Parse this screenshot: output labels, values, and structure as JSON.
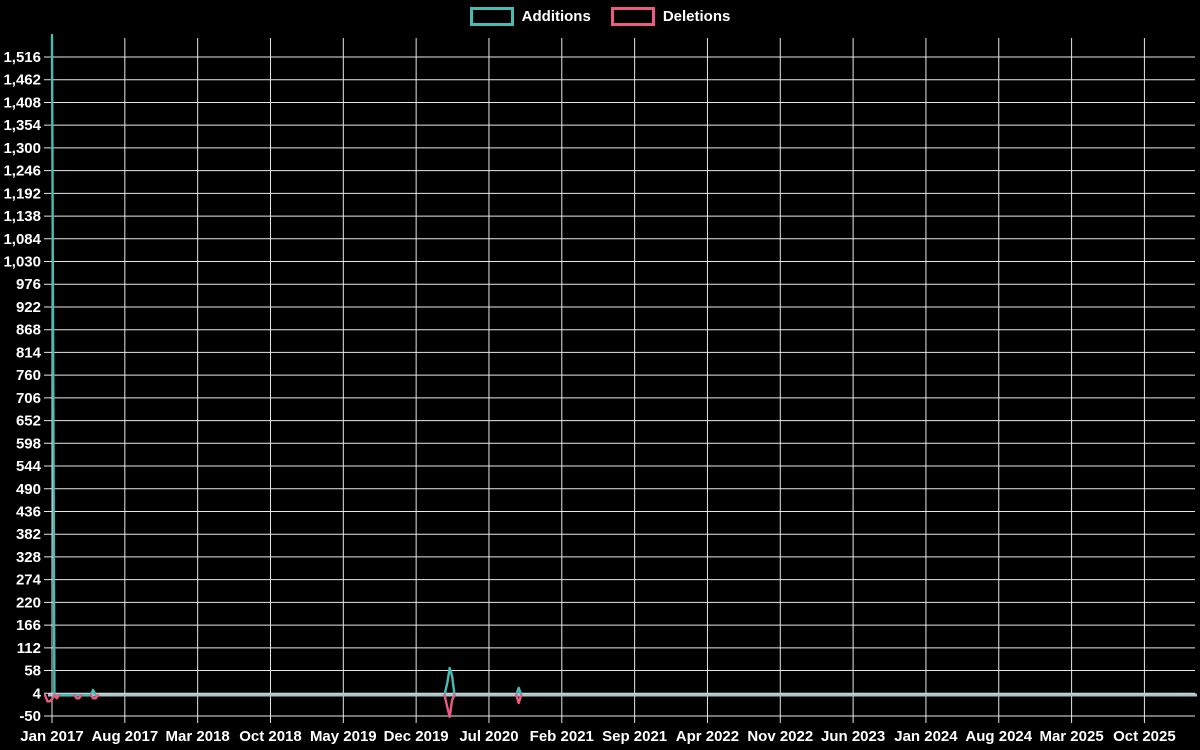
{
  "legend": {
    "items": [
      {
        "label": "Additions",
        "color": "#47bcb4"
      },
      {
        "label": "Deletions",
        "color": "#ea5a82"
      }
    ]
  },
  "chart_data": {
    "type": "line",
    "title": "",
    "background": "#000000",
    "grid": true,
    "grid_color": "#e8e8e8",
    "text_color": "#ffffff",
    "baseline_color": "#abc5cd",
    "legend_position": "top-center",
    "x_axis": {
      "tick_labels": [
        "Jan 2017",
        "Aug 2017",
        "Mar 2018",
        "Oct 2018",
        "May 2019",
        "Dec 2019",
        "Jul 2020",
        "Feb 2021",
        "Sep 2021",
        "Apr 2022",
        "Nov 2022",
        "Jun 2023",
        "Jan 2024",
        "Aug 2024",
        "Mar 2025",
        "Oct 2025"
      ],
      "tick_interval_months": 7,
      "start": "2016-12-11",
      "end": "2026-03-01"
    },
    "y_axis": {
      "tick_labels": [
        "1,516",
        "1,462",
        "1,408",
        "1,354",
        "1,300",
        "1,246",
        "1,192",
        "1,138",
        "1,084",
        "1,030",
        "976",
        "922",
        "868",
        "814",
        "760",
        "706",
        "652",
        "598",
        "544",
        "490",
        "436",
        "382",
        "328",
        "274",
        "220",
        "166",
        "112",
        "58",
        "4",
        "-50"
      ],
      "tick_values": [
        1516,
        1462,
        1408,
        1354,
        1300,
        1246,
        1192,
        1138,
        1084,
        1030,
        976,
        922,
        868,
        814,
        760,
        706,
        652,
        598,
        544,
        490,
        436,
        382,
        328,
        274,
        220,
        166,
        112,
        58,
        4,
        -50
      ],
      "min": -50,
      "max": 1516,
      "step": 54
    },
    "series": [
      {
        "name": "Additions",
        "color": "#47bcb4",
        "baseline_value": 0,
        "segments": [
          [
            [
              "2017-01-01",
              1568
            ],
            [
              "2017-01-08",
              0
            ],
            [
              "2017-04-23",
              0
            ],
            [
              "2017-04-30",
              12
            ],
            [
              "2017-05-07",
              0
            ]
          ],
          [
            [
              "2020-02-23",
              0
            ],
            [
              "2020-03-01",
              30
            ],
            [
              "2020-03-08",
              64
            ],
            [
              "2020-03-15",
              45
            ],
            [
              "2020-03-22",
              0
            ]
          ],
          [
            [
              "2020-09-20",
              0
            ],
            [
              "2020-09-27",
              17
            ],
            [
              "2020-10-04",
              0
            ]
          ]
        ]
      },
      {
        "name": "Deletions",
        "color": "#ea5a82",
        "baseline_value": 0,
        "segments": [
          [
            [
              "2016-12-11",
              0
            ],
            [
              "2016-12-18",
              -15
            ],
            [
              "2016-12-25",
              -15
            ],
            [
              "2017-01-01",
              -10
            ],
            [
              "2017-01-08",
              0
            ],
            [
              "2017-01-15",
              -8
            ],
            [
              "2017-01-22",
              0
            ]
          ],
          [
            [
              "2017-03-05",
              0
            ],
            [
              "2017-03-12",
              -8
            ],
            [
              "2017-03-19",
              -8
            ],
            [
              "2017-03-26",
              0
            ]
          ],
          [
            [
              "2017-04-23",
              0
            ],
            [
              "2017-04-30",
              -8
            ],
            [
              "2017-05-07",
              -8
            ],
            [
              "2017-05-14",
              0
            ]
          ],
          [
            [
              "2020-02-23",
              0
            ],
            [
              "2020-03-01",
              -30
            ],
            [
              "2020-03-08",
              -52
            ],
            [
              "2020-03-15",
              -12
            ],
            [
              "2020-03-22",
              0
            ]
          ],
          [
            [
              "2020-09-20",
              0
            ],
            [
              "2020-09-27",
              -19
            ],
            [
              "2020-10-04",
              0
            ]
          ]
        ]
      }
    ]
  }
}
